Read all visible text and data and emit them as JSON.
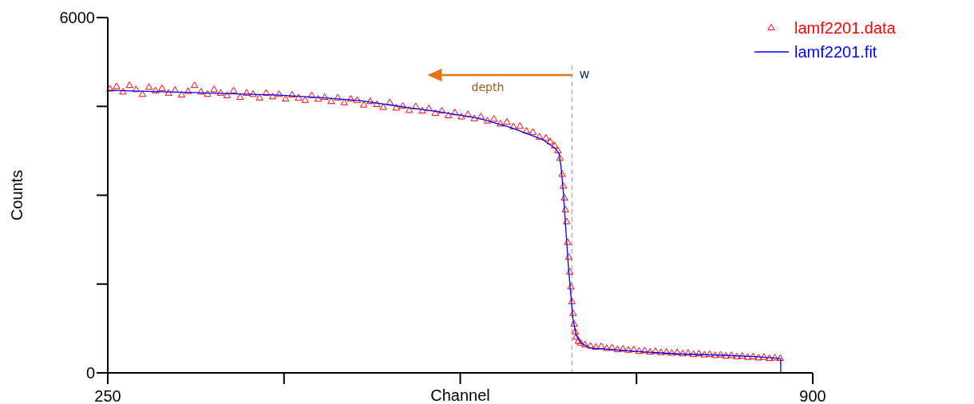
{
  "chart_data": {
    "type": "scatter",
    "xlabel": "Channel",
    "ylabel": "Counts",
    "xlim": [
      250,
      900
    ],
    "ylim": [
      0,
      6000
    ],
    "xticks": [
      250,
      {
        "value": 412.5,
        "label": null
      },
      {
        "value": 575,
        "label": null
      },
      {
        "value": 737.5,
        "label": null
      },
      900
    ],
    "yticks": [
      0,
      {
        "value": 1500,
        "label": null
      },
      {
        "value": 3000,
        "label": null
      },
      {
        "value": 4500,
        "label": null
      },
      6000
    ],
    "legend": "top right",
    "grid": false,
    "ref_lines": [
      {
        "axis": "x",
        "value": 678,
        "label": "w",
        "color": "#b4b4b4",
        "line_style": "dashed"
      }
    ],
    "annotations": [
      "depth"
    ],
    "series": [
      {
        "name": "lamf2201.data",
        "type": "scatter",
        "marker": "triangle",
        "color": "#ff0000",
        "x": [
          252,
          258,
          264,
          270,
          276,
          282,
          288,
          294,
          300,
          306,
          312,
          318,
          324,
          330,
          336,
          342,
          348,
          354,
          360,
          366,
          372,
          378,
          384,
          390,
          396,
          402,
          408,
          414,
          420,
          426,
          432,
          438,
          444,
          450,
          456,
          462,
          468,
          474,
          480,
          486,
          492,
          498,
          504,
          510,
          516,
          522,
          528,
          534,
          540,
          546,
          552,
          558,
          564,
          570,
          576,
          582,
          588,
          594,
          600,
          606,
          612,
          618,
          624,
          630,
          636,
          642,
          648,
          654,
          658,
          662,
          665,
          667,
          669,
          670,
          671,
          672,
          673,
          674,
          675,
          676,
          677,
          678,
          679,
          680,
          681,
          682,
          684,
          686,
          690,
          695,
          700,
          705,
          710,
          715,
          720,
          725,
          730,
          735,
          740,
          745,
          750,
          755,
          760,
          765,
          770,
          775,
          780,
          785,
          790,
          795,
          800,
          805,
          810,
          815,
          820,
          825,
          830,
          835,
          840,
          845,
          850,
          855,
          860,
          865,
          870
        ],
        "values": [
          4790,
          4830,
          4740,
          4850,
          4780,
          4700,
          4820,
          4760,
          4800,
          4720,
          4770,
          4690,
          4750,
          4850,
          4740,
          4700,
          4780,
          4720,
          4680,
          4760,
          4650,
          4720,
          4700,
          4640,
          4720,
          4660,
          4700,
          4620,
          4690,
          4640,
          4600,
          4680,
          4620,
          4650,
          4580,
          4640,
          4560,
          4620,
          4600,
          4520,
          4580,
          4530,
          4480,
          4560,
          4470,
          4500,
          4430,
          4490,
          4420,
          4460,
          4380,
          4420,
          4340,
          4390,
          4320,
          4360,
          4290,
          4320,
          4250,
          4280,
          4200,
          4230,
          4150,
          4160,
          4080,
          4060,
          3980,
          3960,
          3900,
          3830,
          3750,
          3620,
          3350,
          3150,
          2950,
          2750,
          2550,
          2200,
          1950,
          1700,
          1450,
          1200,
          1000,
          820,
          690,
          600,
          530,
          500,
          470,
          450,
          430,
          440,
          410,
          420,
          390,
          400,
          380,
          390,
          360,
          370,
          350,
          360,
          340,
          350,
          330,
          340,
          320,
          330,
          310,
          320,
          300,
          310,
          290,
          300,
          280,
          290,
          270,
          280,
          260,
          270,
          250,
          260,
          240,
          250,
          240
        ]
      },
      {
        "name": "lamf2201.fit",
        "type": "line",
        "marker": "none",
        "line_style": "solid",
        "color": "#0000ff",
        "x": [
          250,
          334.7,
          408,
          445,
          482,
          519,
          555,
          592,
          622,
          651,
          662,
          666,
          668,
          670,
          672,
          674.5,
          677,
          679,
          682,
          686.5,
          695,
          739.5,
          776,
          813,
          850,
          870.5,
          870.5
        ],
        "values": [
          4770,
          4730,
          4690,
          4650,
          4600,
          4500,
          4410,
          4300,
          4140,
          3940,
          3800,
          3710,
          3470,
          3060,
          2520,
          1850,
          1310,
          900,
          630,
          500,
          420,
          360,
          320,
          300,
          270,
          240,
          0
        ]
      }
    ]
  }
}
